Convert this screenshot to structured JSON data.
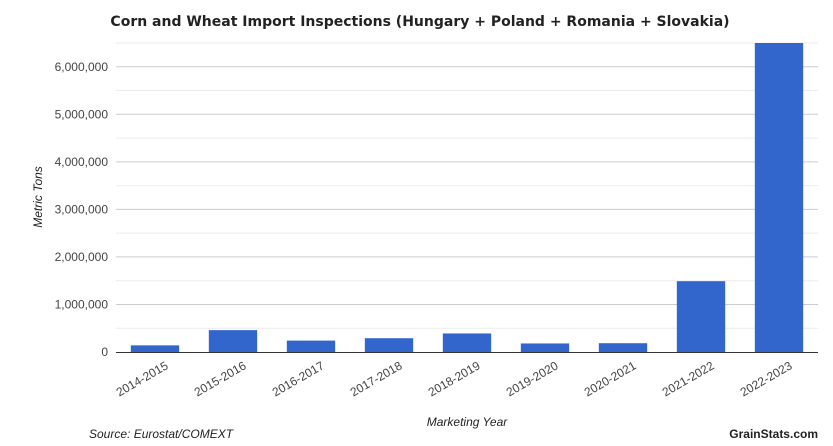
{
  "chart_data": {
    "type": "bar",
    "title": "Corn and Wheat Import Inspections (Hungary + Poland + Romania + Slovakia)",
    "xlabel": "Marketing Year",
    "ylabel": "Metric Tons",
    "categories": [
      "2014-2015",
      "2015-2016",
      "2016-2017",
      "2017-2018",
      "2018-2019",
      "2019-2020",
      "2020-2021",
      "2021-2022",
      "2022-2023"
    ],
    "values": [
      140000,
      460000,
      240000,
      290000,
      390000,
      180000,
      185000,
      1490000,
      6500000
    ],
    "ylim": [
      0,
      6500000
    ],
    "yticks": [
      0,
      1000000,
      2000000,
      3000000,
      4000000,
      5000000,
      6000000
    ],
    "ytick_labels": [
      "0",
      "1,000,000",
      "2,000,000",
      "3,000,000",
      "4,000,000",
      "5,000,000",
      "6,000,000"
    ],
    "grid": true,
    "bar_color": "#3366cc"
  },
  "source": "Source: Eurostat/COMEXT",
  "credit": "GrainStats.com"
}
